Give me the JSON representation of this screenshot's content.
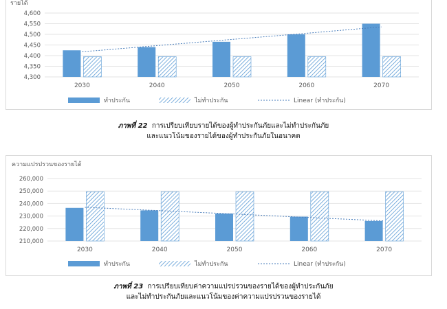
{
  "charts": [
    {
      "caption_label": "ภาพที่ 22",
      "caption_line1": "การเปรียบเทียบรายได้ของผู้ทำประกันภัยและไม่ทำประกันภัย",
      "caption_line2": "และแนวโน้มของรายได้ของผู้ทำประกันภัยในอนาคต"
    },
    {
      "caption_label": "ภาพที่ 23",
      "caption_line1": "การเปรียบเทียบค่าความแปรปรวนของรายได้ของผู้ทำประกันภัย",
      "caption_line2": "และไม่ทำประกันภัยและแนวโน้มของค่าความแปรปรวนของรายได้"
    }
  ],
  "chart_data": [
    {
      "type": "bar",
      "ylabel": "รายได้",
      "categories": [
        "2030",
        "2040",
        "2050",
        "2060",
        "2070"
      ],
      "ylim": [
        4300,
        4600
      ],
      "yticks": [
        4300,
        4350,
        4400,
        4450,
        4500,
        4550,
        4600
      ],
      "ytick_labels": [
        "4,300",
        "4,350",
        "4,400",
        "4,450",
        "4,500",
        "4,550",
        "4,600"
      ],
      "series": [
        {
          "name": "ทำประกัน",
          "values": [
            4425,
            4440,
            4465,
            4500,
            4550
          ],
          "color": "#5b9bd5",
          "pattern": "solid"
        },
        {
          "name": "ไม่ทำประกัน",
          "values": [
            4395,
            4395,
            4395,
            4395,
            4395
          ],
          "color": "#5b9bd5",
          "pattern": "hatch"
        }
      ],
      "trendline": {
        "name": "Linear (ทำประกัน)",
        "values": [
          4418,
          4447,
          4476,
          4505,
          4535
        ],
        "style": "dotted"
      },
      "grid": true,
      "legend": "bottom"
    },
    {
      "type": "bar",
      "ylabel": "ความแปรปรวนของรายได้",
      "categories": [
        "2030",
        "2040",
        "2050",
        "2060",
        "2070"
      ],
      "ylim": [
        210000,
        260000
      ],
      "yticks": [
        210000,
        220000,
        230000,
        240000,
        250000,
        260000
      ],
      "ytick_labels": [
        "210,000",
        "220,000",
        "230,000",
        "240,000",
        "250,000",
        "260,000"
      ],
      "series": [
        {
          "name": "ทำประกัน",
          "values": [
            236500,
            234500,
            232000,
            229500,
            226000
          ],
          "color": "#5b9bd5",
          "pattern": "solid"
        },
        {
          "name": "ไม่ทำประกัน",
          "values": [
            249500,
            249500,
            249500,
            249500,
            249500
          ],
          "color": "#5b9bd5",
          "pattern": "hatch"
        }
      ],
      "trendline": {
        "name": "Linear (ทำประกัน)",
        "values": [
          237000,
          234300,
          231600,
          228800,
          226100
        ],
        "style": "dotted"
      },
      "grid": true,
      "legend": "bottom"
    }
  ]
}
